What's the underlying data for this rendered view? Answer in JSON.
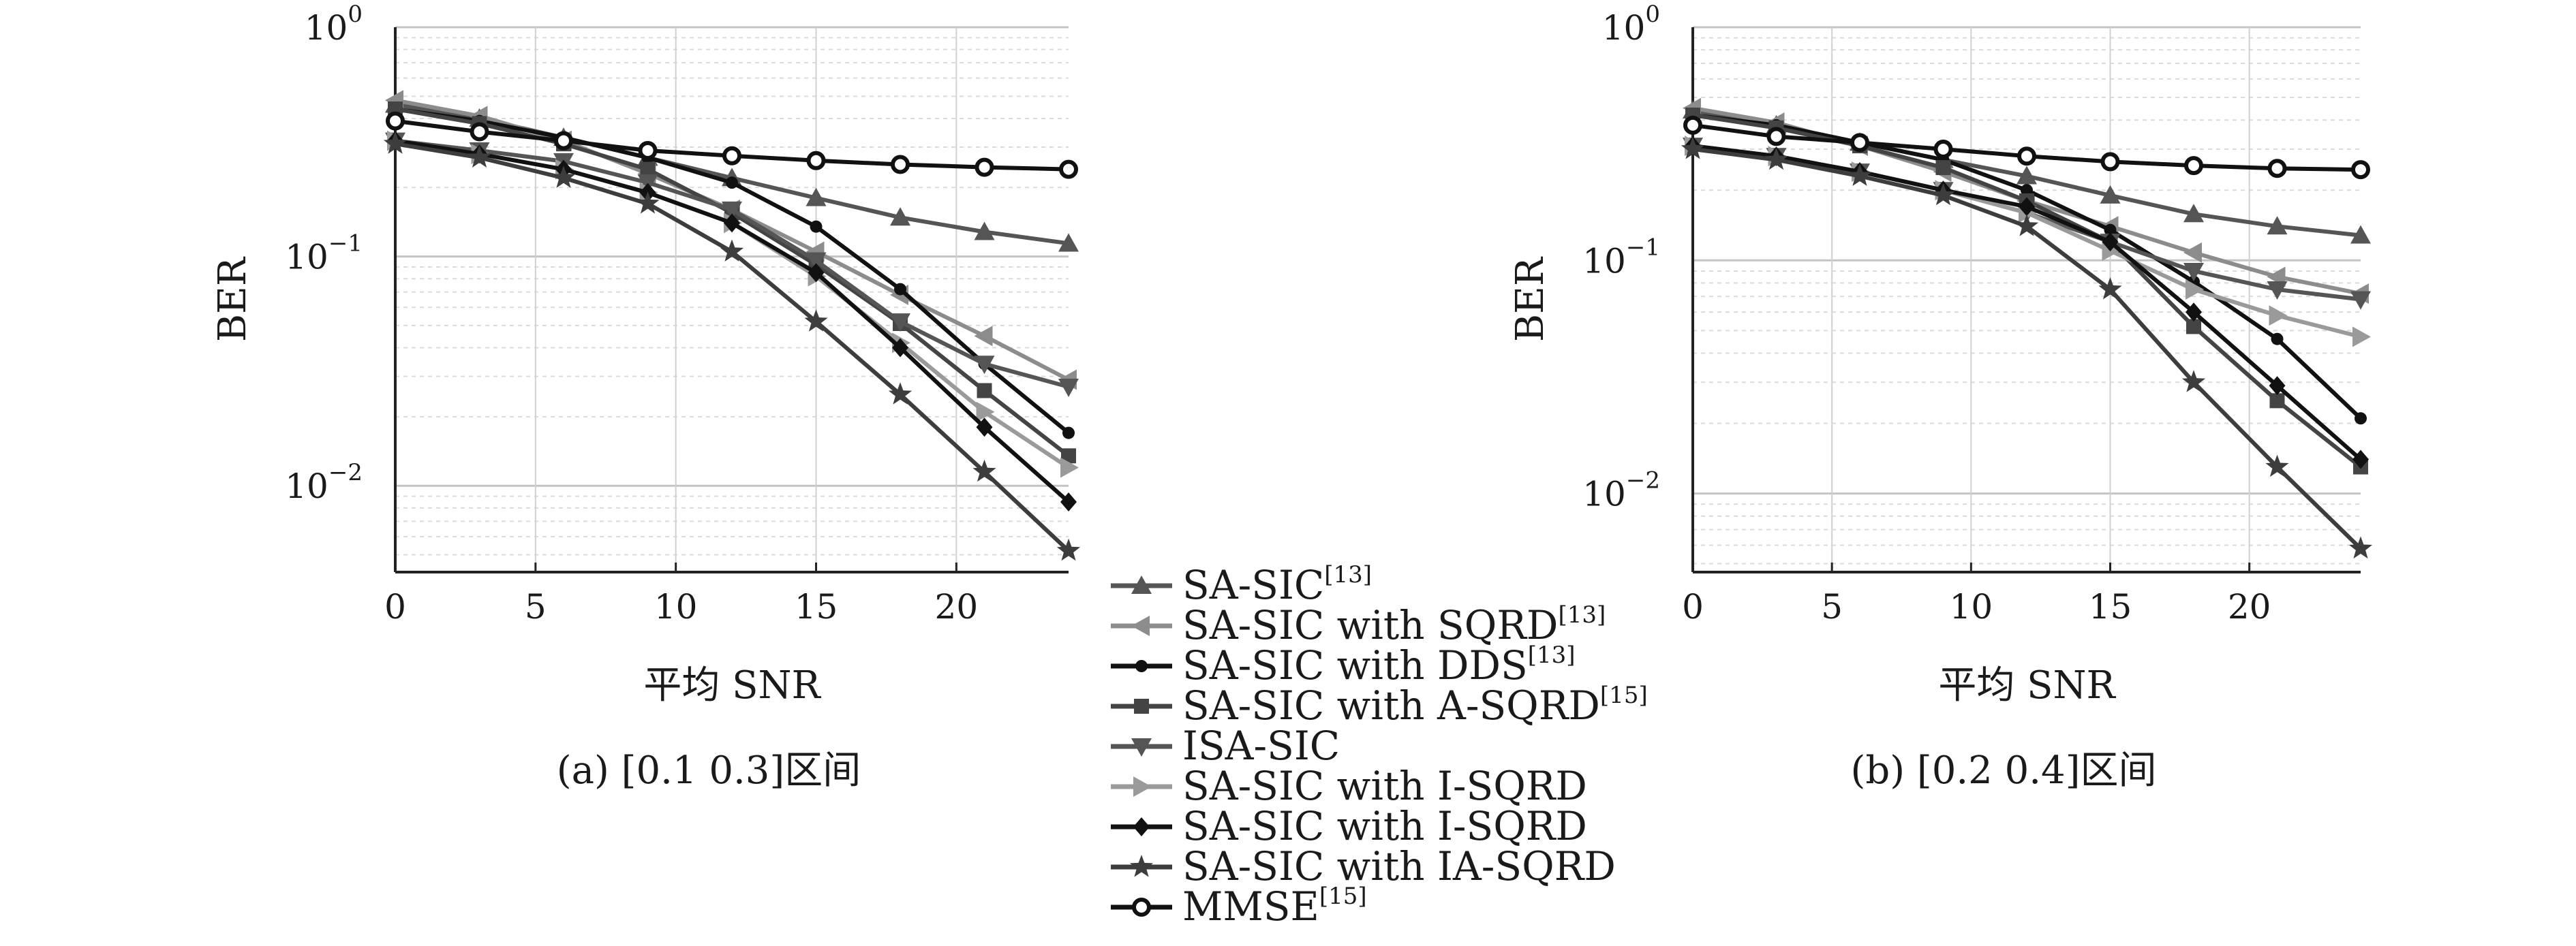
{
  "chart_data": [
    {
      "type": "line",
      "caption": "(a) [0.1 0.3]区间",
      "xlabel": "平均 SNR",
      "ylabel": "BER",
      "yscale": "log",
      "xlim": [
        0,
        24
      ],
      "ylim": [
        0.0042,
        1
      ],
      "xticks": [
        0,
        5,
        10,
        15,
        20
      ],
      "yticks": [
        {
          "value": 1,
          "base": "10",
          "exp": "0"
        },
        {
          "value": 0.1,
          "base": "10",
          "exp": "−1"
        },
        {
          "value": 0.01,
          "base": "10",
          "exp": "−2"
        }
      ],
      "grid": true,
      "x": [
        0,
        3,
        6,
        9,
        12,
        15,
        18,
        21,
        24
      ],
      "series": [
        {
          "id": "s1",
          "values": [
            0.46,
            0.4,
            0.33,
            0.27,
            0.22,
            0.18,
            0.148,
            0.128,
            0.114
          ]
        },
        {
          "id": "s2",
          "values": [
            0.48,
            0.41,
            0.32,
            0.23,
            0.16,
            0.105,
            0.068,
            0.045,
            0.029
          ]
        },
        {
          "id": "s3",
          "values": [
            0.44,
            0.39,
            0.33,
            0.27,
            0.21,
            0.135,
            0.072,
            0.034,
            0.017
          ]
        },
        {
          "id": "s4",
          "values": [
            0.44,
            0.38,
            0.31,
            0.24,
            0.155,
            0.092,
            0.051,
            0.026,
            0.0135
          ]
        },
        {
          "id": "s5",
          "values": [
            0.32,
            0.29,
            0.26,
            0.21,
            0.16,
            0.096,
            0.052,
            0.034,
            0.027
          ]
        },
        {
          "id": "s6",
          "values": [
            0.32,
            0.28,
            0.24,
            0.19,
            0.14,
            0.082,
            0.042,
            0.021,
            0.012
          ]
        },
        {
          "id": "s7",
          "values": [
            0.32,
            0.28,
            0.24,
            0.19,
            0.14,
            0.085,
            0.04,
            0.018,
            0.0085
          ]
        },
        {
          "id": "s8",
          "values": [
            0.31,
            0.27,
            0.22,
            0.17,
            0.105,
            0.052,
            0.025,
            0.0115,
            0.0052
          ]
        },
        {
          "id": "s9",
          "values": [
            0.39,
            0.35,
            0.32,
            0.29,
            0.275,
            0.262,
            0.252,
            0.245,
            0.24
          ]
        }
      ]
    },
    {
      "type": "line",
      "caption": "(b) [0.2 0.4]区间",
      "xlabel": "平均 SNR",
      "ylabel": "BER",
      "yscale": "log",
      "xlim": [
        0,
        24
      ],
      "ylim": [
        0.0046,
        1
      ],
      "xticks": [
        0,
        5,
        10,
        15,
        20
      ],
      "yticks": [
        {
          "value": 1,
          "base": "10",
          "exp": "0"
        },
        {
          "value": 0.1,
          "base": "10",
          "exp": "−1"
        },
        {
          "value": 0.01,
          "base": "10",
          "exp": "−2"
        }
      ],
      "grid": true,
      "x": [
        0,
        3,
        6,
        9,
        12,
        15,
        18,
        21,
        24
      ],
      "series": [
        {
          "id": "s1",
          "values": [
            0.44,
            0.38,
            0.32,
            0.27,
            0.23,
            0.19,
            0.158,
            0.14,
            0.128
          ]
        },
        {
          "id": "s2",
          "values": [
            0.45,
            0.39,
            0.31,
            0.24,
            0.18,
            0.14,
            0.108,
            0.085,
            0.072
          ]
        },
        {
          "id": "s3",
          "values": [
            0.42,
            0.38,
            0.32,
            0.27,
            0.2,
            0.135,
            0.081,
            0.046,
            0.021
          ]
        },
        {
          "id": "s4",
          "values": [
            0.42,
            0.37,
            0.31,
            0.25,
            0.18,
            0.12,
            0.052,
            0.025,
            0.013
          ]
        },
        {
          "id": "s5",
          "values": [
            0.31,
            0.28,
            0.24,
            0.2,
            0.16,
            0.12,
            0.09,
            0.075,
            0.068
          ]
        },
        {
          "id": "s6",
          "values": [
            0.31,
            0.28,
            0.24,
            0.2,
            0.16,
            0.11,
            0.075,
            0.058,
            0.047
          ]
        },
        {
          "id": "s7",
          "values": [
            0.31,
            0.28,
            0.24,
            0.2,
            0.17,
            0.12,
            0.06,
            0.029,
            0.014
          ]
        },
        {
          "id": "s8",
          "values": [
            0.3,
            0.27,
            0.23,
            0.19,
            0.14,
            0.075,
            0.03,
            0.013,
            0.0058
          ]
        },
        {
          "id": "s9",
          "values": [
            0.38,
            0.34,
            0.32,
            0.3,
            0.28,
            0.265,
            0.255,
            0.248,
            0.245
          ]
        }
      ]
    }
  ],
  "legend": {
    "placement": "bottom-center",
    "items": [
      {
        "id": "s1",
        "label": "SA-SIC",
        "sup": "[13]",
        "color": "#555555",
        "marker": "triangle-up"
      },
      {
        "id": "s2",
        "label": "SA-SIC with SQRD",
        "sup": "[13]",
        "color": "#8c8c8c",
        "marker": "triangle-left"
      },
      {
        "id": "s3",
        "label": "SA-SIC with DDS",
        "sup": "[13]",
        "color": "#111111",
        "marker": "dot"
      },
      {
        "id": "s4",
        "label": "SA-SIC with A-SQRD",
        "sup": "[15]",
        "color": "#444444",
        "marker": "square"
      },
      {
        "id": "s5",
        "label": "ISA-SIC",
        "sup": "",
        "color": "#555555",
        "marker": "triangle-down"
      },
      {
        "id": "s6",
        "label": "SA-SIC with I-SQRD",
        "sup": "",
        "color": "#9a9a9a",
        "marker": "triangle-right"
      },
      {
        "id": "s7",
        "label": "SA-SIC with I-SQRD",
        "sup": "",
        "color": "#111111",
        "marker": "diamond"
      },
      {
        "id": "s8",
        "label": "SA-SIC with IA-SQRD",
        "sup": "",
        "color": "#3d3d3d",
        "marker": "star"
      },
      {
        "id": "s9",
        "label": "MMSE",
        "sup": "[15]",
        "color": "#111111",
        "marker": "circle-open"
      }
    ]
  }
}
